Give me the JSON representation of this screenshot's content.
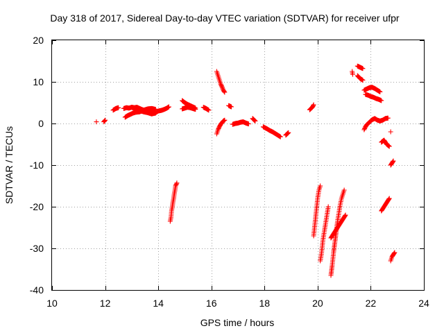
{
  "chart_data": {
    "type": "scatter",
    "title": "Day 318 of 2017, Sidereal Day-to-day VTEC variation (SDTVAR) for receiver ufpr",
    "xlabel": "GPS time / hours",
    "ylabel": "SDTVAR / TECUs",
    "xlim": [
      10,
      24
    ],
    "ylim": [
      -40,
      20
    ],
    "xticks": [
      10,
      12,
      14,
      16,
      18,
      20,
      22,
      24
    ],
    "yticks": [
      -40,
      -30,
      -20,
      -10,
      0,
      10,
      20
    ],
    "xtick_labels": [
      "10",
      "12",
      "14",
      "16",
      "18",
      "20",
      "22",
      "24"
    ],
    "ytick_labels": [
      "-40",
      "-30",
      "-20",
      "-10",
      "0",
      "10",
      "20"
    ],
    "grid": true,
    "legend": "none",
    "marker": "plus",
    "color": "#ff0000",
    "series": [
      {
        "segments": [
          [
            [
              11.67,
              0.4
            ]
          ],
          [
            [
              11.95,
              0.4
            ],
            [
              12.0,
              0.8
            ]
          ],
          [
            [
              12.3,
              3.2
            ],
            [
              12.4,
              3.6
            ],
            [
              12.5,
              3.8
            ]
          ],
          [
            [
              12.7,
              3.6
            ],
            [
              12.8,
              3.8
            ],
            [
              12.9,
              3.7
            ],
            [
              13.0,
              3.9
            ],
            [
              13.1,
              3.8
            ],
            [
              13.2,
              3.9
            ],
            [
              13.3,
              3.6
            ],
            [
              13.45,
              3.2
            ],
            [
              13.6,
              3.0
            ],
            [
              13.75,
              2.8
            ],
            [
              13.9,
              2.6
            ],
            [
              14.0,
              3.0
            ],
            [
              14.15,
              3.2
            ],
            [
              14.3,
              3.6
            ],
            [
              14.4,
              4.0
            ]
          ],
          [
            [
              12.75,
              1.5
            ],
            [
              12.85,
              1.9
            ],
            [
              12.95,
              2.2
            ],
            [
              13.05,
              2.5
            ],
            [
              13.15,
              2.7
            ],
            [
              13.3,
              2.8
            ],
            [
              13.45,
              3.2
            ],
            [
              13.6,
              3.5
            ],
            [
              13.75,
              3.6
            ],
            [
              13.9,
              3.4
            ]
          ],
          [
            [
              13.0,
              3.9
            ],
            [
              13.1,
              3.6
            ],
            [
              13.2,
              3.3
            ],
            [
              13.3,
              3.1
            ],
            [
              13.45,
              2.8
            ],
            [
              13.6,
              2.6
            ],
            [
              13.75,
              2.3
            ],
            [
              13.9,
              2.5
            ]
          ],
          [
            [
              14.45,
              -23.5
            ],
            [
              14.48,
              -22.5
            ],
            [
              14.5,
              -21.0
            ],
            [
              14.53,
              -20.0
            ],
            [
              14.55,
              -19.0
            ],
            [
              14.58,
              -18.0
            ],
            [
              14.6,
              -17.0
            ],
            [
              14.63,
              -16.0
            ],
            [
              14.65,
              -15.0
            ],
            [
              14.7,
              -14.3
            ]
          ],
          [
            [
              14.9,
              5.5
            ],
            [
              15.0,
              5.0
            ],
            [
              15.1,
              4.6
            ],
            [
              15.2,
              4.3
            ],
            [
              15.3,
              4.0
            ],
            [
              15.4,
              3.7
            ]
          ],
          [
            [
              14.9,
              3.5
            ],
            [
              15.0,
              3.7
            ],
            [
              15.1,
              3.9
            ],
            [
              15.2,
              3.8
            ],
            [
              15.3,
              3.6
            ],
            [
              15.4,
              3.4
            ]
          ],
          [
            [
              15.7,
              3.9
            ],
            [
              15.8,
              3.6
            ],
            [
              15.9,
              3.2
            ]
          ],
          [
            [
              16.2,
              12.5
            ],
            [
              16.25,
              11.5
            ],
            [
              16.3,
              10.5
            ],
            [
              16.35,
              9.5
            ],
            [
              16.4,
              8.8
            ],
            [
              16.45,
              8.0
            ],
            [
              16.5,
              7.5
            ]
          ],
          [
            [
              16.2,
              -2.5
            ],
            [
              16.25,
              -1.5
            ],
            [
              16.3,
              -0.8
            ],
            [
              16.35,
              -0.2
            ],
            [
              16.4,
              0.2
            ],
            [
              16.45,
              0.6
            ],
            [
              16.5,
              0.8
            ]
          ],
          [
            [
              16.65,
              4.3
            ],
            [
              16.75,
              4.0
            ]
          ],
          [
            [
              16.8,
              -0.2
            ],
            [
              16.9,
              0.0
            ],
            [
              17.0,
              0.1
            ],
            [
              17.1,
              0.3
            ],
            [
              17.2,
              0.4
            ],
            [
              17.3,
              0.1
            ],
            [
              17.4,
              -0.1
            ]
          ],
          [
            [
              17.55,
              1.2
            ],
            [
              17.65,
              0.6
            ]
          ],
          [
            [
              17.95,
              -0.8
            ],
            [
              18.1,
              -1.3
            ],
            [
              18.2,
              -1.7
            ],
            [
              18.3,
              -2.0
            ],
            [
              18.4,
              -2.4
            ],
            [
              18.5,
              -2.8
            ],
            [
              18.6,
              -3.2
            ]
          ],
          [
            [
              18.8,
              -2.8
            ],
            [
              18.9,
              -2.2
            ]
          ],
          [
            [
              19.7,
              3.3
            ],
            [
              19.8,
              3.9
            ],
            [
              19.85,
              4.5
            ]
          ],
          [
            [
              19.85,
              -27.0
            ],
            [
              19.9,
              -24.0
            ],
            [
              19.95,
              -21.0
            ],
            [
              20.0,
              -18.0
            ],
            [
              20.05,
              -16.0
            ],
            [
              20.1,
              -15.0
            ]
          ],
          [
            [
              20.1,
              -33.0
            ],
            [
              20.15,
              -31.0
            ],
            [
              20.2,
              -28.0
            ],
            [
              20.25,
              -26.0
            ],
            [
              20.3,
              -24.0
            ],
            [
              20.35,
              -22.0
            ],
            [
              20.4,
              -20.0
            ]
          ],
          [
            [
              20.5,
              -36.5
            ],
            [
              20.55,
              -34.0
            ],
            [
              20.6,
              -31.0
            ],
            [
              20.65,
              -28.5
            ],
            [
              20.7,
              -26.0
            ],
            [
              20.75,
              -23.5
            ],
            [
              20.8,
              -21.5
            ],
            [
              20.85,
              -19.5
            ],
            [
              20.9,
              -18.0
            ],
            [
              21.0,
              -16.0
            ]
          ],
          [
            [
              20.5,
              -27.5
            ],
            [
              20.55,
              -27.0
            ],
            [
              20.65,
              -26.0
            ],
            [
              20.75,
              -25.0
            ],
            [
              20.85,
              -24.0
            ],
            [
              20.95,
              -23.0
            ],
            [
              21.05,
              -22.0
            ]
          ],
          [
            [
              21.3,
              12.5
            ],
            [
              21.32,
              11.8
            ]
          ],
          [
            [
              21.5,
              13.8
            ],
            [
              21.6,
              13.5
            ],
            [
              21.7,
              13.2
            ]
          ],
          [
            [
              21.5,
              11.5
            ],
            [
              21.6,
              10.8
            ],
            [
              21.7,
              10.4
            ]
          ],
          [
            [
              21.75,
              8.0
            ],
            [
              21.85,
              8.3
            ],
            [
              21.95,
              8.6
            ],
            [
              22.05,
              8.7
            ],
            [
              22.15,
              8.4
            ],
            [
              22.25,
              8.0
            ],
            [
              22.35,
              7.6
            ]
          ],
          [
            [
              21.8,
              7.0
            ],
            [
              21.9,
              6.8
            ],
            [
              22.0,
              6.5
            ],
            [
              22.1,
              6.3
            ],
            [
              22.2,
              6.0
            ],
            [
              22.3,
              5.8
            ],
            [
              22.4,
              5.5
            ]
          ],
          [
            [
              21.75,
              -1.5
            ],
            [
              21.8,
              -0.8
            ],
            [
              21.85,
              -0.3
            ],
            [
              21.95,
              0.3
            ],
            [
              22.05,
              0.9
            ],
            [
              22.15,
              1.2
            ],
            [
              22.25,
              0.8
            ],
            [
              22.35,
              0.6
            ],
            [
              22.45,
              0.8
            ],
            [
              22.55,
              1.2
            ],
            [
              22.65,
              1.3
            ]
          ],
          [
            [
              22.4,
              -4.5
            ],
            [
              22.5,
              -4.0
            ],
            [
              22.6,
              -5.0
            ],
            [
              22.7,
              -5.5
            ]
          ],
          [
            [
              22.4,
              -21.0
            ],
            [
              22.45,
              -20.5
            ],
            [
              22.5,
              -20.0
            ],
            [
              22.55,
              -19.5
            ],
            [
              22.6,
              -19.0
            ],
            [
              22.65,
              -18.5
            ],
            [
              22.7,
              -18.0
            ]
          ],
          [
            [
              22.75,
              -2.0
            ]
          ],
          [
            [
              22.75,
              -10.0
            ],
            [
              22.8,
              -9.5
            ],
            [
              22.85,
              -9.0
            ]
          ],
          [
            [
              22.75,
              -33.0
            ],
            [
              22.8,
              -32.0
            ],
            [
              22.85,
              -31.5
            ],
            [
              22.9,
              -31.0
            ]
          ]
        ]
      }
    ]
  }
}
